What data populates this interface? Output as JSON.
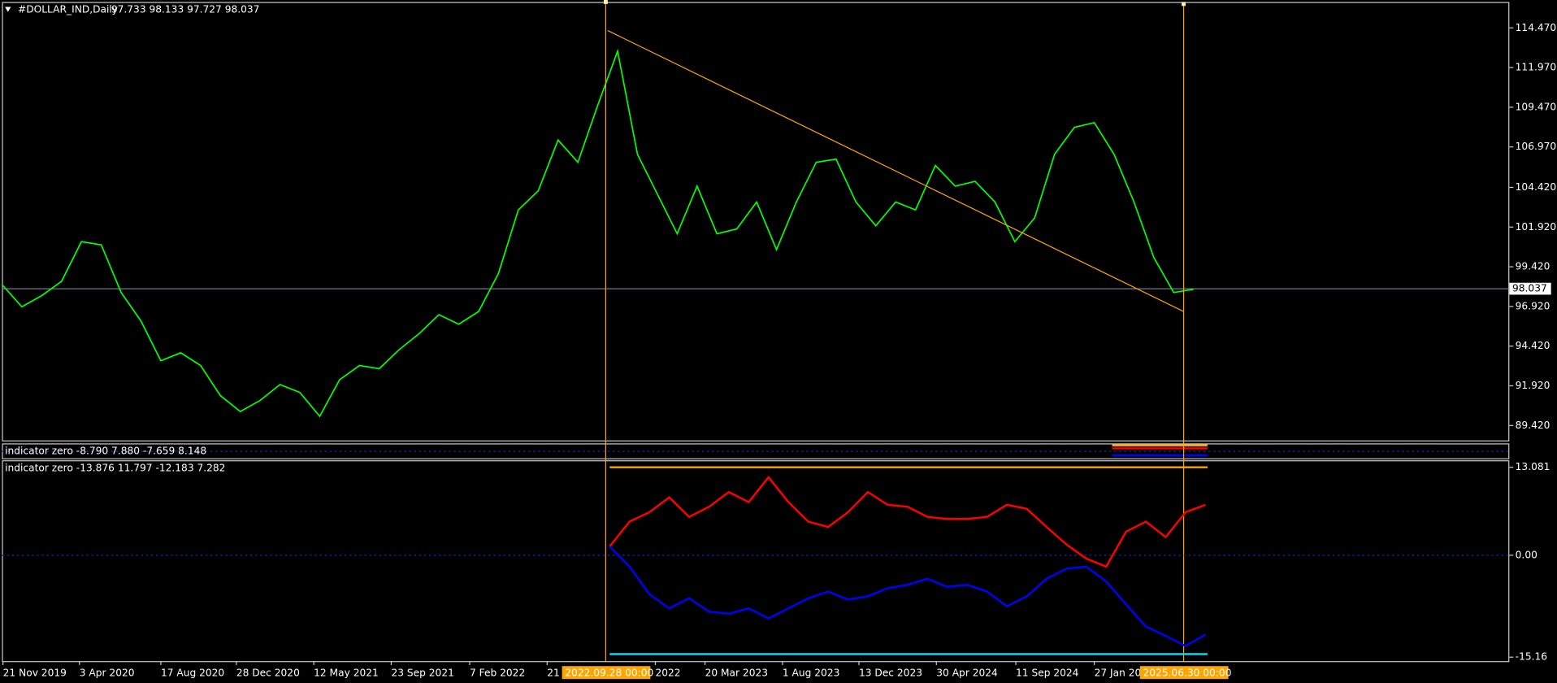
{
  "header": {
    "title": "#DOLLAR_IND,Daily",
    "ohlc": "97.733 98.133 97.727 98.037"
  },
  "indicator1": {
    "title": "indicator zero -8.790 7.880 -7.659 8.148"
  },
  "time_axis": {
    "labels": [
      "21 Nov 2019",
      "3 Apr 2020",
      "17 Aug 2020",
      "28 Dec 2020",
      "12 May 2021",
      "23 Sep 2021",
      "7 Feb 2022",
      "21",
      "2022",
      "20 Mar 2023",
      "1 Aug 2023",
      "13 Dec 2023",
      "30 Apr 2024",
      "11 Sep 2024",
      "27 Jan 20"
    ],
    "cursors": [
      "2022.09.28 00:00",
      "2025.06.30 00:00"
    ]
  },
  "chart_data": [
    {
      "type": "line",
      "ylim": [
        88.48,
        116.1
      ],
      "yticks": [
        {
          "value": 114.47,
          "label": "114.470"
        },
        {
          "value": 111.97,
          "label": "111.970"
        },
        {
          "value": 109.47,
          "label": "109.470"
        },
        {
          "value": 106.97,
          "label": "106.970"
        },
        {
          "value": 104.42,
          "label": "104.420"
        },
        {
          "value": 101.92,
          "label": "101.920"
        },
        {
          "value": 99.42,
          "label": "99.420"
        },
        {
          "value": 96.92,
          "label": "96.920"
        },
        {
          "value": 94.42,
          "label": "94.420"
        },
        {
          "value": 91.92,
          "label": "91.920"
        },
        {
          "value": 89.42,
          "label": "89.420"
        }
      ],
      "current_price": {
        "value": 98.037,
        "label": "98.037"
      },
      "color": "#00ff00",
      "values": [
        98.3,
        96.9,
        97.6,
        98.5,
        101.0,
        100.8,
        97.8,
        96.0,
        93.5,
        94.0,
        93.2,
        91.3,
        90.3,
        91.0,
        92.0,
        91.5,
        90.0,
        92.3,
        93.2,
        93.0,
        94.2,
        95.2,
        96.4,
        95.8,
        96.6,
        99.0,
        103.0,
        104.2,
        107.4,
        106.0,
        109.6,
        113.0,
        106.5,
        104.0,
        101.5,
        104.5,
        101.5,
        101.8,
        103.5,
        100.5,
        103.5,
        106.0,
        106.2,
        103.5,
        102.0,
        103.5,
        103.0,
        105.8,
        104.5,
        104.8,
        103.5,
        101.0,
        102.5,
        106.5,
        108.2,
        108.5,
        106.5,
        103.5,
        100.0,
        97.8,
        98.0
      ],
      "trendline": {
        "values": [
          114.3,
          96.6
        ],
        "color": "#ffa500"
      }
    },
    {
      "type": "line",
      "title": "indicator zero -13.876 11.797 -12.183 7.282",
      "ylim": [
        -15.75,
        14.12
      ],
      "yticks": [
        13.081,
        {
          "value": 0,
          "label": "0.00"
        },
        -15.16
      ],
      "levels": [
        {
          "value": 13.081,
          "color": "#ffa500"
        },
        {
          "value": -14.7,
          "color": "#00e5ff"
        }
      ],
      "series": [
        {
          "color": "#ff0000",
          "values": [
            1.3,
            5.0,
            6.4,
            8.6,
            5.7,
            7.2,
            9.4,
            7.9,
            11.6,
            7.9,
            5.0,
            4.2,
            6.4,
            9.4,
            7.5,
            7.2,
            5.7,
            5.4,
            5.4,
            5.7,
            7.5,
            6.9,
            4.2,
            1.6,
            -0.5,
            -1.7,
            3.5,
            5.0,
            2.7,
            6.4,
            7.5
          ]
        },
        {
          "color": "#0000ff",
          "values": [
            1.3,
            -1.7,
            -5.8,
            -7.9,
            -6.4,
            -8.4,
            -8.7,
            -7.9,
            -9.4,
            -7.9,
            -6.4,
            -5.4,
            -6.6,
            -6.1,
            -4.9,
            -4.4,
            -3.5,
            -4.7,
            -4.4,
            -5.4,
            -7.6,
            -6.1,
            -3.5,
            -2.0,
            -1.7,
            -3.9,
            -7.3,
            -10.6,
            -12.0,
            -13.5,
            -11.8
          ]
        }
      ]
    }
  ]
}
